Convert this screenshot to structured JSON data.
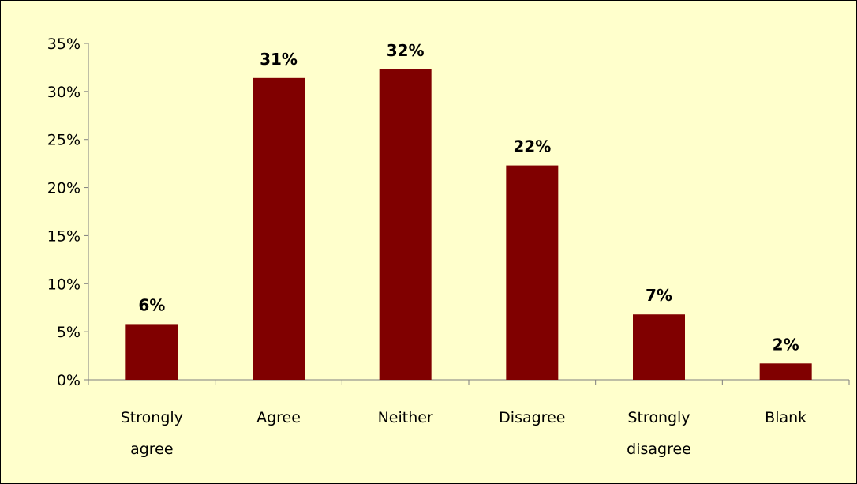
{
  "chart_data": {
    "type": "bar",
    "categories": [
      "Strongly agree",
      "Agree",
      "Neither",
      "Disagree",
      "Strongly disagree",
      "Blank"
    ],
    "category_lines": [
      [
        "Strongly",
        "agree"
      ],
      [
        "Agree"
      ],
      [
        "Neither"
      ],
      [
        "Disagree"
      ],
      [
        "Strongly",
        "disagree"
      ],
      [
        "Blank"
      ]
    ],
    "values": [
      5.8,
      31.4,
      32.3,
      22.3,
      6.8,
      1.7
    ],
    "data_labels": [
      "6%",
      "31%",
      "32%",
      "22%",
      "7%",
      "2%"
    ],
    "ylim": [
      0,
      35
    ],
    "yticks": [
      0,
      5,
      10,
      15,
      20,
      25,
      30,
      35
    ],
    "ytick_labels": [
      "0%",
      "5%",
      "10%",
      "15%",
      "20%",
      "25%",
      "30%",
      "35%"
    ],
    "title": "",
    "xlabel": "",
    "ylabel": "",
    "grid": false,
    "legend": "none",
    "bar_color": "#800000",
    "background_color": "#FFFFCC"
  }
}
